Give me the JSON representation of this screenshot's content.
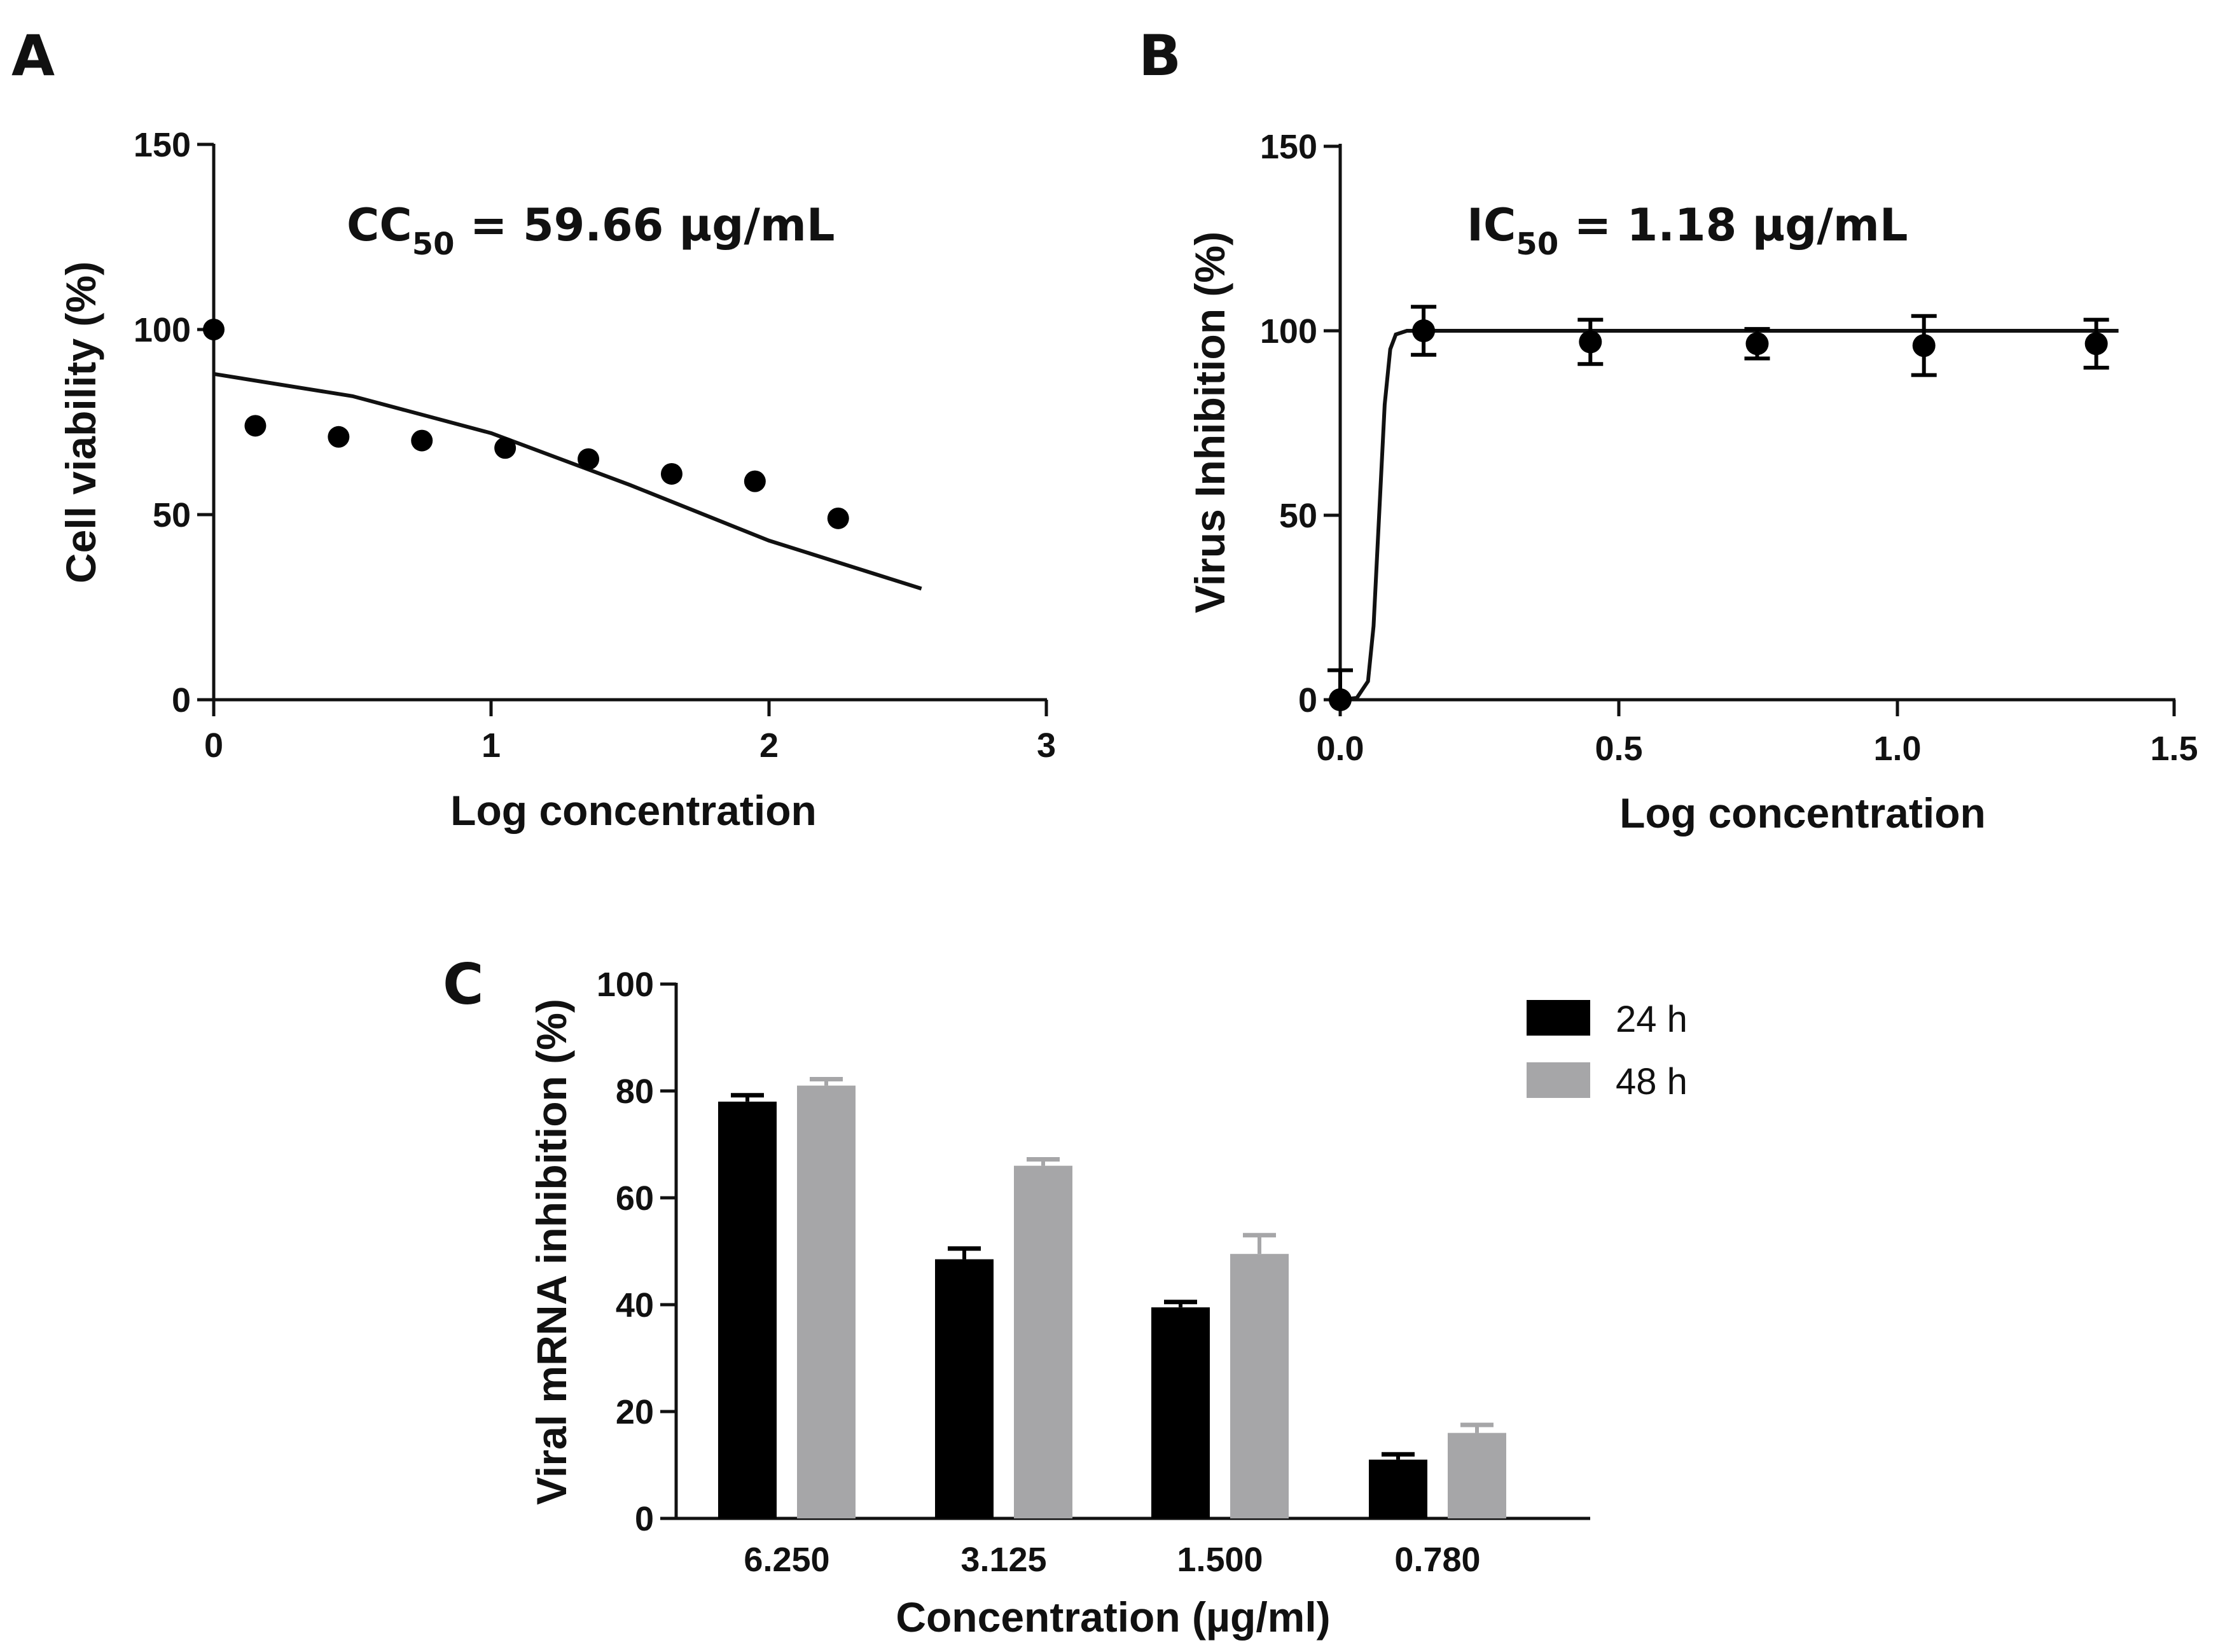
{
  "chart_data": [
    {
      "type": "scatter",
      "panel": "A",
      "xlabel": "Log concentration",
      "ylabel": "Cell viability (%)",
      "xlim": [
        0,
        3
      ],
      "ylim": [
        0,
        150
      ],
      "xticks": [
        "0",
        "1",
        "2",
        "3"
      ],
      "yticks": [
        "0",
        "50",
        "100",
        "150"
      ],
      "annotation": {
        "main": "CC",
        "sub": "50",
        "rest": " = 59.66 µg/mL"
      },
      "points": [
        {
          "x": 0.0,
          "y": 100
        },
        {
          "x": 0.15,
          "y": 74
        },
        {
          "x": 0.45,
          "y": 71
        },
        {
          "x": 0.75,
          "y": 70
        },
        {
          "x": 1.05,
          "y": 68
        },
        {
          "x": 1.35,
          "y": 65
        },
        {
          "x": 1.65,
          "y": 61
        },
        {
          "x": 1.95,
          "y": 59
        },
        {
          "x": 2.25,
          "y": 49
        }
      ],
      "fit": {
        "x": [
          0,
          0.5,
          1.0,
          1.5,
          2.0,
          2.55
        ],
        "y": [
          88,
          82,
          72,
          58,
          43,
          30
        ]
      }
    },
    {
      "type": "scatter",
      "panel": "B",
      "xlabel": "Log concentration",
      "ylabel": "Virus Inhibition (%)",
      "xlim": [
        0,
        1.5
      ],
      "ylim": [
        0,
        150
      ],
      "xticks": [
        "0.0",
        "0.5",
        "1.0",
        "1.5"
      ],
      "yticks": [
        "0",
        "50",
        "100",
        "150"
      ],
      "annotation": {
        "main": "IC",
        "sub": "50",
        "rest": " = 1.18 µg/mL"
      },
      "points": [
        {
          "x": 0.0,
          "y": 0,
          "err": 8
        },
        {
          "x": 0.15,
          "y": 100,
          "err": 6.5
        },
        {
          "x": 0.45,
          "y": 97,
          "err": 6
        },
        {
          "x": 0.75,
          "y": 96.5,
          "err": 4
        },
        {
          "x": 1.05,
          "y": 96,
          "err": 8
        },
        {
          "x": 1.36,
          "y": 96.5,
          "err": 6.5
        }
      ],
      "fit": {
        "x": [
          0.0,
          0.03,
          0.05,
          0.06,
          0.07,
          0.08,
          0.09,
          0.1,
          0.12,
          0.15,
          1.4
        ],
        "y": [
          0,
          0.5,
          5,
          20,
          50,
          80,
          95,
          99,
          100,
          100,
          100
        ]
      }
    },
    {
      "type": "bar",
      "panel": "C",
      "xlabel": "Concentration (µg/ml)",
      "ylabel": "Viral mRNA inhibition (%)",
      "ylim": [
        0,
        100
      ],
      "yticks": [
        "0",
        "20",
        "40",
        "60",
        "80",
        "100"
      ],
      "categories": [
        "6.250",
        "3.125",
        "1.500",
        "0.780"
      ],
      "series": [
        {
          "name": "24 h",
          "color": "#000000",
          "values": [
            78,
            48.5,
            39.5,
            11
          ],
          "errors": [
            1.2,
            2,
            1,
            1
          ]
        },
        {
          "name": "48 h",
          "color": "#a6a6a8",
          "values": [
            81,
            66,
            49.5,
            16
          ],
          "errors": [
            1.2,
            1.2,
            3.5,
            1.5
          ]
        }
      ],
      "legend": "top-right"
    }
  ],
  "panels": {
    "a": {
      "letter": "A"
    },
    "b": {
      "letter": "B"
    },
    "c": {
      "letter": "C"
    }
  }
}
